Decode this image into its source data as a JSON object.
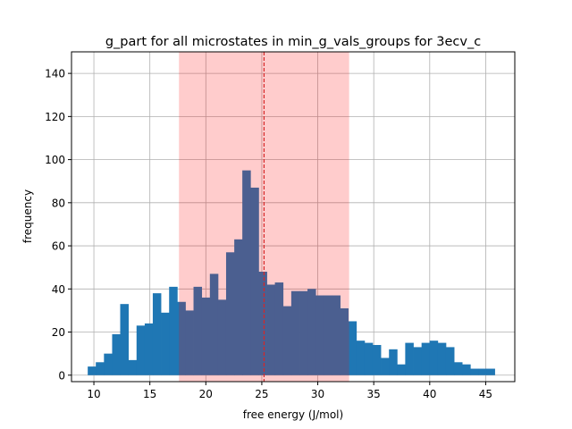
{
  "chart_data": {
    "type": "bar",
    "title": "g_part for all microstates in min_g_vals_groups for 3ecv_c",
    "xlabel": "free energy (J/mol)",
    "ylabel": "frequency",
    "xlim": [
      8.0,
      47.6
    ],
    "ylim": [
      -3,
      150
    ],
    "xticks": [
      10,
      15,
      20,
      25,
      30,
      35,
      40,
      45
    ],
    "yticks": [
      0,
      20,
      40,
      60,
      80,
      100,
      120,
      140
    ],
    "grid": true,
    "bin_width": 0.727,
    "bin_left_edges": [
      9.45,
      10.17,
      10.9,
      11.63,
      12.35,
      13.08,
      13.81,
      14.54,
      15.26,
      15.99,
      16.72,
      17.45,
      18.17,
      18.9,
      19.63,
      20.36,
      21.08,
      21.81,
      22.54,
      23.26,
      23.99,
      24.72,
      25.45,
      26.17,
      26.9,
      27.63,
      28.36,
      29.08,
      29.81,
      30.54,
      31.27,
      31.99,
      32.72,
      33.45,
      34.17,
      34.9,
      35.63,
      36.36,
      37.08,
      37.81,
      38.54,
      39.27,
      39.99,
      40.72,
      41.45,
      42.17,
      42.9,
      43.63,
      44.36,
      45.08
    ],
    "values": [
      4,
      6,
      10,
      19,
      33,
      7,
      23,
      24,
      38,
      29,
      41,
      34,
      30,
      41,
      36,
      47,
      35,
      57,
      63,
      95,
      87,
      48,
      42,
      43,
      32,
      39,
      39,
      40,
      37,
      37,
      37,
      31,
      25,
      16,
      15,
      14,
      8,
      12,
      5,
      15,
      13,
      15,
      16,
      15,
      13,
      6,
      5,
      3,
      3,
      3
    ],
    "bar_color": "#1f77b4",
    "shaded_region": {
      "x_start": 17.6,
      "x_end": 32.8,
      "color": "#ff0000",
      "alpha": 0.2
    },
    "vline": {
      "x": 25.2,
      "color": "#d62728",
      "style": "dashed"
    }
  }
}
